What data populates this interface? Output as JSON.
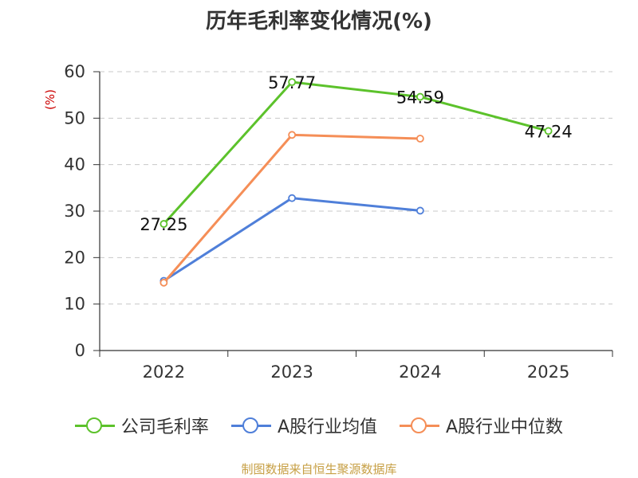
{
  "title": "历年毛利率变化情况(%)",
  "source": "制图数据来自恒生聚源数据库",
  "chart_data": {
    "type": "line",
    "title": "历年毛利率变化情况(%)",
    "ylabel": "(%)",
    "xlabel": "",
    "categories": [
      "2022",
      "2023",
      "2024",
      "2025"
    ],
    "ylim": [
      0,
      60
    ],
    "yticks": [
      0,
      10,
      20,
      30,
      40,
      50,
      60
    ],
    "grid": "horizontal dashed",
    "legend_position": "bottom",
    "series": [
      {
        "name": "公司毛利率",
        "color": "#5cc22b",
        "values": [
          27.25,
          57.77,
          54.59,
          47.24
        ],
        "labels": [
          "27.25",
          "57.77",
          "54.59",
          "47.24"
        ]
      },
      {
        "name": "A股行业均值",
        "color": "#4f7fd9",
        "values": [
          15.0,
          32.8,
          30.1,
          null
        ]
      },
      {
        "name": "A股行业中位数",
        "color": "#f58e57",
        "values": [
          14.6,
          46.4,
          45.6,
          null
        ]
      }
    ]
  }
}
